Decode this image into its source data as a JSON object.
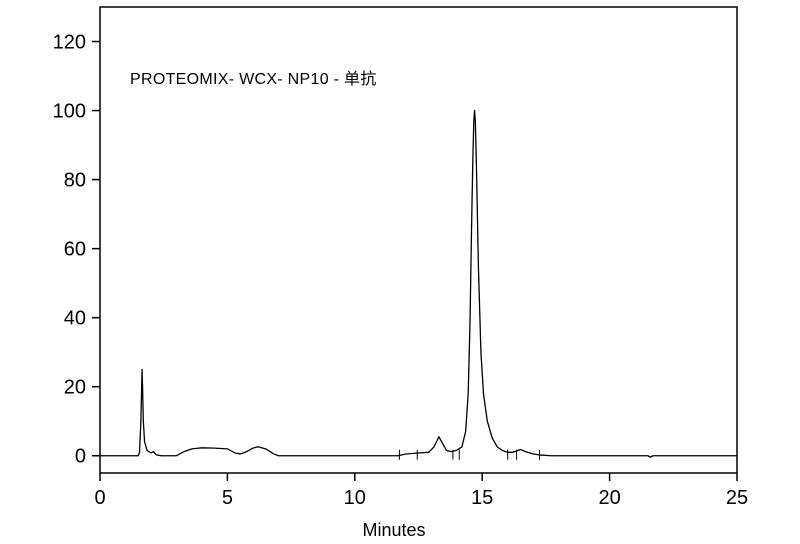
{
  "chart_data": {
    "type": "line",
    "annotation": "PROTEOMIX- WCX- NP10 - 单抗",
    "title": "",
    "xlabel": "Minutes",
    "ylabel": "",
    "xlim": [
      0,
      25
    ],
    "ylim": [
      -5,
      130
    ],
    "x_ticks": [
      0,
      5,
      10,
      15,
      20,
      25
    ],
    "y_ticks": [
      0,
      20,
      40,
      60,
      80,
      100,
      120
    ],
    "grid": false,
    "series": [
      {
        "points": [
          [
            0.0,
            0.0
          ],
          [
            1.5,
            0.0
          ],
          [
            1.55,
            1.0
          ],
          [
            1.6,
            9.0
          ],
          [
            1.63,
            18.0
          ],
          [
            1.65,
            25.0
          ],
          [
            1.67,
            20.0
          ],
          [
            1.7,
            10.0
          ],
          [
            1.75,
            4.0
          ],
          [
            1.85,
            1.5
          ],
          [
            2.0,
            0.8
          ],
          [
            2.1,
            1.2
          ],
          [
            2.2,
            0.3
          ],
          [
            2.4,
            0.0
          ],
          [
            3.0,
            0.0
          ],
          [
            3.3,
            1.2
          ],
          [
            3.6,
            2.0
          ],
          [
            4.0,
            2.3
          ],
          [
            4.5,
            2.2
          ],
          [
            5.0,
            2.0
          ],
          [
            5.3,
            0.8
          ],
          [
            5.5,
            0.5
          ],
          [
            5.7,
            1.0
          ],
          [
            6.0,
            2.2
          ],
          [
            6.2,
            2.6
          ],
          [
            6.5,
            2.0
          ],
          [
            6.8,
            0.6
          ],
          [
            7.0,
            0.0
          ],
          [
            11.7,
            0.0
          ],
          [
            12.0,
            0.5
          ],
          [
            12.5,
            0.8
          ],
          [
            12.9,
            1.0
          ],
          [
            13.1,
            2.5
          ],
          [
            13.3,
            5.5
          ],
          [
            13.45,
            3.5
          ],
          [
            13.6,
            1.5
          ],
          [
            13.8,
            1.2
          ],
          [
            14.0,
            1.6
          ],
          [
            14.2,
            2.5
          ],
          [
            14.35,
            7.0
          ],
          [
            14.45,
            18.0
          ],
          [
            14.52,
            38.0
          ],
          [
            14.58,
            65.0
          ],
          [
            14.63,
            85.0
          ],
          [
            14.67,
            97.0
          ],
          [
            14.7,
            100.0
          ],
          [
            14.73,
            97.0
          ],
          [
            14.78,
            82.0
          ],
          [
            14.85,
            55.0
          ],
          [
            14.95,
            30.0
          ],
          [
            15.05,
            18.0
          ],
          [
            15.2,
            10.0
          ],
          [
            15.4,
            5.0
          ],
          [
            15.6,
            2.5
          ],
          [
            15.8,
            1.5
          ],
          [
            16.0,
            1.0
          ],
          [
            16.2,
            1.0
          ],
          [
            16.5,
            1.8
          ],
          [
            16.7,
            1.2
          ],
          [
            17.0,
            0.5
          ],
          [
            17.3,
            0.2
          ],
          [
            17.7,
            0.0
          ],
          [
            21.5,
            0.0
          ],
          [
            21.6,
            -0.4
          ],
          [
            21.7,
            0.0
          ],
          [
            25.0,
            0.0
          ]
        ]
      }
    ],
    "integration_marks": [
      11.75,
      12.45,
      13.85,
      14.1,
      16.0,
      16.35,
      17.25
    ]
  }
}
